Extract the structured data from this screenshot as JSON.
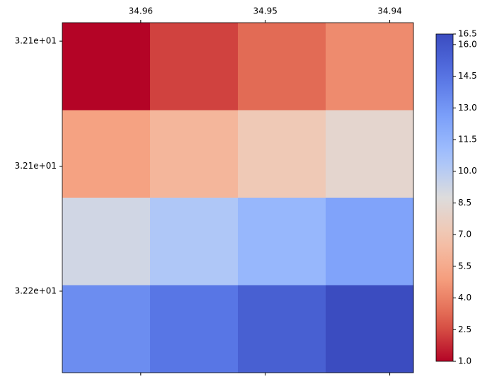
{
  "chart_data": {
    "type": "heatmap",
    "values": [
      [
        1.0,
        2.3,
        3.3,
        4.3
      ],
      [
        5.1,
        6.1,
        7.2,
        8.2
      ],
      [
        9.2,
        10.3,
        11.3,
        12.4
      ],
      [
        13.4,
        14.4,
        15.5,
        16.5
      ]
    ],
    "colormap": "coolwarm_r",
    "clim": [
      1.0,
      16.5
    ],
    "cticks": [
      {
        "value": 1.0,
        "label": "1.0"
      },
      {
        "value": 2.5,
        "label": "2.5"
      },
      {
        "value": 4.0,
        "label": "4.0"
      },
      {
        "value": 5.5,
        "label": "5.5"
      },
      {
        "value": 7.0,
        "label": "7.0"
      },
      {
        "value": 8.5,
        "label": "8.5"
      },
      {
        "value": 10.0,
        "label": "10.0"
      },
      {
        "value": 11.5,
        "label": "11.5"
      },
      {
        "value": 13.0,
        "label": "13.0"
      },
      {
        "value": 14.5,
        "label": "14.5"
      },
      {
        "value": 16.0,
        "label": "16.0"
      },
      {
        "value": 16.5,
        "label": "16.5"
      }
    ],
    "xlim": [
      34.9663,
      34.9381
    ],
    "xticks": [
      34.96,
      34.95,
      34.94
    ],
    "ylim": [
      32.0926,
      32.2326
    ],
    "yticks": [
      {
        "value": 32.1,
        "label": "3.21e+01"
      },
      {
        "value": 32.15,
        "label": "3.21e+01"
      },
      {
        "value": 32.2,
        "label": "3.22e+01"
      }
    ]
  }
}
